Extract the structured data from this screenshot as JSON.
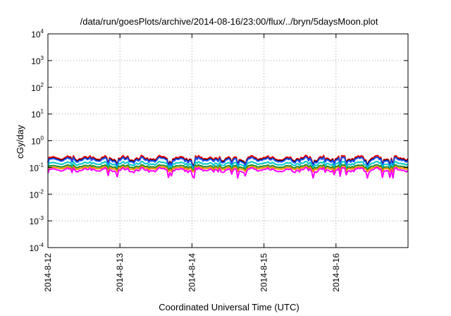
{
  "chart_data": {
    "type": "line",
    "title": "/data/run/goesPlots/archive/2014-08-16/23:00/flux/../bryn/5daysMoon.plot",
    "xlabel": "Coordinated Universal Time (UTC)",
    "ylabel": "cGy/day",
    "yscale": "log",
    "ylim": [
      0.0001,
      10000
    ],
    "y_ticks": [
      {
        "base": "10",
        "exp": "-4"
      },
      {
        "base": "10",
        "exp": "-3"
      },
      {
        "base": "10",
        "exp": "-2"
      },
      {
        "base": "10",
        "exp": "-1"
      },
      {
        "base": "10",
        "exp": "0"
      },
      {
        "base": "10",
        "exp": "1"
      },
      {
        "base": "10",
        "exp": "2"
      },
      {
        "base": "10",
        "exp": "3"
      },
      {
        "base": "10",
        "exp": "4"
      }
    ],
    "xlim": [
      "2014-08-12",
      "2014-08-17"
    ],
    "x_ticks": [
      "2014-8-12",
      "2014-8-13",
      "2014-8-14",
      "2014-8-15",
      "2014-8-16"
    ],
    "grid": true,
    "series": [
      {
        "color": "#ff0000",
        "base": 0.22,
        "amplitude": 0.35,
        "min_dip": 0.12
      },
      {
        "color": "#000000",
        "base": 0.2,
        "amplitude": 0.3,
        "min_dip": 0.12
      },
      {
        "color": "#2050ff",
        "base": 0.19,
        "amplitude": 0.35,
        "min_dip": 0.1
      },
      {
        "color": "#00c8c8",
        "base": 0.14,
        "amplitude": 0.25,
        "min_dip": 0.09
      },
      {
        "color": "#228b22",
        "base": 0.11,
        "amplitude": 0.2,
        "min_dip": 0.08
      },
      {
        "color": "#ff8c00",
        "base": 0.095,
        "amplitude": 0.2,
        "min_dip": 0.07
      },
      {
        "color": "#ff00ff",
        "base": 0.08,
        "amplitude": 0.3,
        "min_dip": 0.04
      }
    ]
  }
}
